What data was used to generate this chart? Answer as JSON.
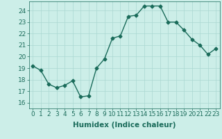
{
  "x": [
    0,
    1,
    2,
    3,
    4,
    5,
    6,
    7,
    8,
    9,
    10,
    11,
    12,
    13,
    14,
    15,
    16,
    17,
    18,
    19,
    20,
    21,
    22,
    23
  ],
  "y": [
    19.2,
    18.8,
    17.6,
    17.3,
    17.5,
    17.9,
    16.5,
    16.6,
    19.0,
    19.8,
    21.6,
    21.8,
    23.5,
    23.6,
    24.4,
    24.4,
    24.4,
    23.0,
    23.0,
    22.3,
    21.5,
    21.0,
    20.2,
    20.7
  ],
  "line_color": "#1a6b5a",
  "marker": "D",
  "marker_size": 2.5,
  "bg_color": "#cceee8",
  "grid_color": "#aad8d2",
  "xlabel": "Humidex (Indice chaleur)",
  "xlim": [
    -0.5,
    23.5
  ],
  "ylim": [
    15.5,
    24.8
  ],
  "yticks": [
    16,
    17,
    18,
    19,
    20,
    21,
    22,
    23,
    24
  ],
  "xticks": [
    0,
    1,
    2,
    3,
    4,
    5,
    6,
    7,
    8,
    9,
    10,
    11,
    12,
    13,
    14,
    15,
    16,
    17,
    18,
    19,
    20,
    21,
    22,
    23
  ],
  "xlabel_fontsize": 7.5,
  "tick_fontsize": 6.5,
  "line_width": 1.0
}
